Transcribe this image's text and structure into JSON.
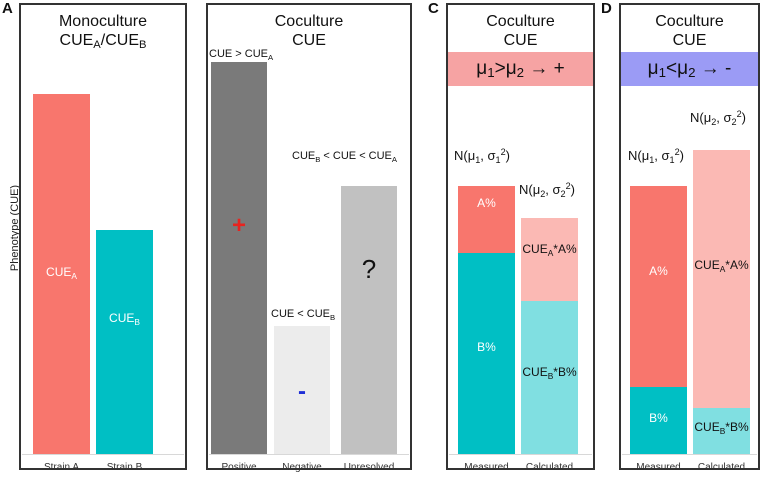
{
  "y_axis_label": "Phenotype (CUE)",
  "panels": {
    "a": {
      "letter": "A",
      "title_line1": "Monoculture",
      "title_cue": "CUE",
      "title_sub_a": "A",
      "title_sep": "/CUE",
      "title_sub_b": "B",
      "bars": [
        {
          "label": "CUE",
          "sub": "A",
          "tick": "Strain A",
          "color": "#f8766d",
          "value": 0.9
        },
        {
          "label": "CUE",
          "sub": "B",
          "tick": "Strain B",
          "color": "#00bfc4",
          "value": 0.56
        }
      ]
    },
    "b": {
      "letter": "B",
      "title_line1": "Coculture",
      "title_line2": "CUE",
      "ann_positive": "CUE > CUE",
      "ann_positive_sub": "A",
      "ann_negative": "CUE < CUE",
      "ann_negative_sub": "B",
      "ann_unres_1": "CUE",
      "ann_unres_1_sub": "B",
      "ann_unres_2": " < CUE < CUE",
      "ann_unres_2_sub": "A",
      "sign_positive": "+",
      "sign_negative": "-",
      "sign_unresolved": "?",
      "ticks": [
        "Positive",
        "Negative",
        "Unresolved"
      ],
      "colors": {
        "positive": "#7a7a7a",
        "negative": "#ececec",
        "unresolved": "#c1c1c1",
        "plus": "#e8231f",
        "minus": "#1f2fd6"
      },
      "values": {
        "positive": 0.98,
        "negative": 0.32,
        "unresolved": 0.67
      }
    },
    "c": {
      "letter": "C",
      "title_line1": "Coculture",
      "title_line2": "CUE",
      "rule_mu1": "μ",
      "rule_sub1": "1",
      "rule_op": ">",
      "rule_mu2": "μ",
      "rule_sub2": "2",
      "rule_arrow": " → +",
      "rule_color": "#f6a3a3",
      "n1": "N(μ",
      "n1_sub": "1",
      "n1_mid": ", σ",
      "n1_sub2": "1",
      "n1_sup": "2",
      "n1_end": ")",
      "n2": "N(μ",
      "n2_sub": "2",
      "n2_mid": ", σ",
      "n2_sub2": "2",
      "n2_sup": "2",
      "n2_end": ")",
      "label_a": "A%",
      "label_b": "B%",
      "calc_a_pre": "CUE",
      "calc_a_sub": "A",
      "calc_a_post": "*A%",
      "calc_b_pre": "CUE",
      "calc_b_sub": "B",
      "calc_b_post": "*B%",
      "ticks": [
        "Measured",
        "Calculated"
      ],
      "measured": {
        "a_fraction": 0.25,
        "total": 0.67
      },
      "calculated": {
        "a_fraction": 0.35,
        "total": 0.59
      }
    },
    "d": {
      "letter": "D",
      "title_line1": "Coculture",
      "title_line2": "CUE",
      "rule_mu1": "μ",
      "rule_sub1": "1",
      "rule_op": "<",
      "rule_mu2": "μ",
      "rule_sub2": "2",
      "rule_arrow": " → -",
      "rule_color": "#9b9bf5",
      "n1": "N(μ",
      "n1_sub": "1",
      "n1_mid": ", σ",
      "n1_sub2": "1",
      "n1_sup": "2",
      "n1_end": ")",
      "n2": "N(μ",
      "n2_sub": "2",
      "n2_mid": ", σ",
      "n2_sub2": "2",
      "n2_sup": "2",
      "n2_end": ")",
      "label_a": "A%",
      "label_b": "B%",
      "calc_a_pre": "CUE",
      "calc_a_sub": "A",
      "calc_a_post": "*A%",
      "calc_b_pre": "CUE",
      "calc_b_sub": "B",
      "calc_b_post": "*B%",
      "ticks": [
        "Measured",
        "Calculated"
      ],
      "measured": {
        "a_fraction": 0.75,
        "total": 0.67
      },
      "calculated": {
        "a_fraction": 0.85,
        "total": 0.76
      }
    }
  }
}
